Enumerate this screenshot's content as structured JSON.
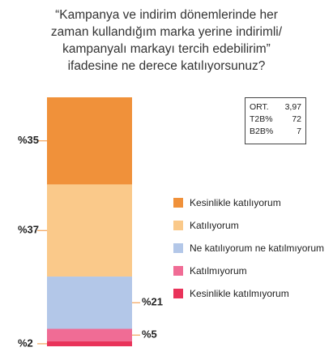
{
  "title_lines": [
    "“Kampanya ve indirim dönemlerinde her",
    "zaman kullandığım marka yerine indirimli/",
    "kampanyalı markayı tercih edebilirim”",
    "ifadesine ne derece katılıyorsunuz?"
  ],
  "stats": [
    {
      "label": "ORT.",
      "value": "3,97"
    },
    {
      "label": "T2B%",
      "value": "72"
    },
    {
      "label": "B2B%",
      "value": "7"
    }
  ],
  "chart_data": {
    "type": "bar",
    "stacked": true,
    "categories": [
      ""
    ],
    "title": "“Kampanya ve indirim dönemlerinde her zaman kullandığım marka yerine indirimli/ kampanyalı markayı tercih edebilirim” ifadesine ne derece katılıyorsunuz?",
    "series": [
      {
        "name": "Kesinlikle katılıyorum",
        "values": [
          35
        ],
        "label": "%35",
        "color": "#F0913A",
        "label_side": "left"
      },
      {
        "name": "Katılıyorum",
        "values": [
          37
        ],
        "label": "%37",
        "color": "#FAC98A",
        "label_side": "left"
      },
      {
        "name": "Ne katılıyorum ne katılmıyorum",
        "values": [
          21
        ],
        "label": "%21",
        "color": "#B3C7E8",
        "label_side": "right"
      },
      {
        "name": "Katılmıyorum",
        "values": [
          5
        ],
        "label": "%5",
        "color": "#F06C95",
        "label_side": "right"
      },
      {
        "name": "Kesinlikle katılmıyorum",
        "values": [
          2
        ],
        "label": "%2",
        "color": "#E9335A",
        "label_side": "left"
      }
    ],
    "ylim": [
      0,
      100
    ],
    "grid": false,
    "legend_position": "right"
  }
}
